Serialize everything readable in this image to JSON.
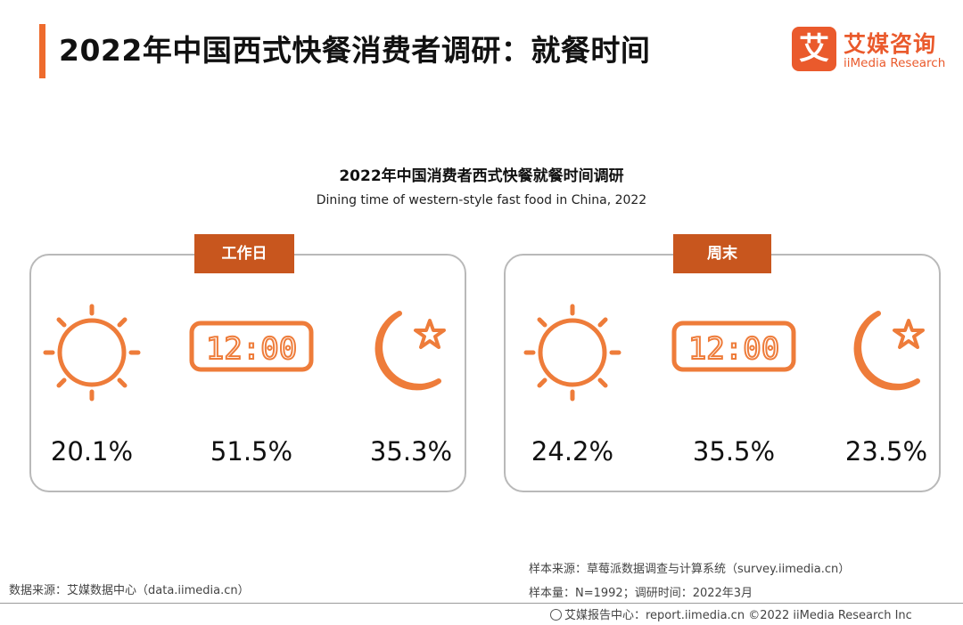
{
  "header": {
    "title": "2022年中国西式快餐消费者调研：就餐时间",
    "logo_mark": "艾",
    "logo_cn": "艾媒咨询",
    "logo_en": "iiMedia Research"
  },
  "chart_data": {
    "type": "table",
    "title": "2022年中国消费者西式快餐就餐时间调研",
    "subtitle": "Dining time of western-style fast food in China, 2022",
    "columns": [
      "sun-icon",
      "clock-icon",
      "moon-star-icon"
    ],
    "unit": "%",
    "groups": [
      {
        "name": "工作日",
        "values": [
          20.1,
          51.5,
          35.3
        ],
        "labels": [
          "20.1%",
          "51.5%",
          "35.3%"
        ]
      },
      {
        "name": "周末",
        "values": [
          24.2,
          35.5,
          23.5
        ],
        "labels": [
          "24.2%",
          "35.5%",
          "23.5%"
        ]
      }
    ],
    "clock_text": "12:00"
  },
  "colors": {
    "accent": "#ee6b2d",
    "icon": "#ee7c3a",
    "tab": "#c8561e",
    "border": "#b9b9b9"
  },
  "footer": {
    "source_left": "数据来源：艾媒数据中心（data.iimedia.cn）",
    "sample_source": "样本来源：草莓派数据调查与计算系统（survey.iimedia.cn）",
    "sample_size": "样本量：N=1992；调研时间：2022年3月",
    "report_center": "艾媒报告中心：report.iimedia.cn   ©2022 iiMedia Research Inc"
  }
}
